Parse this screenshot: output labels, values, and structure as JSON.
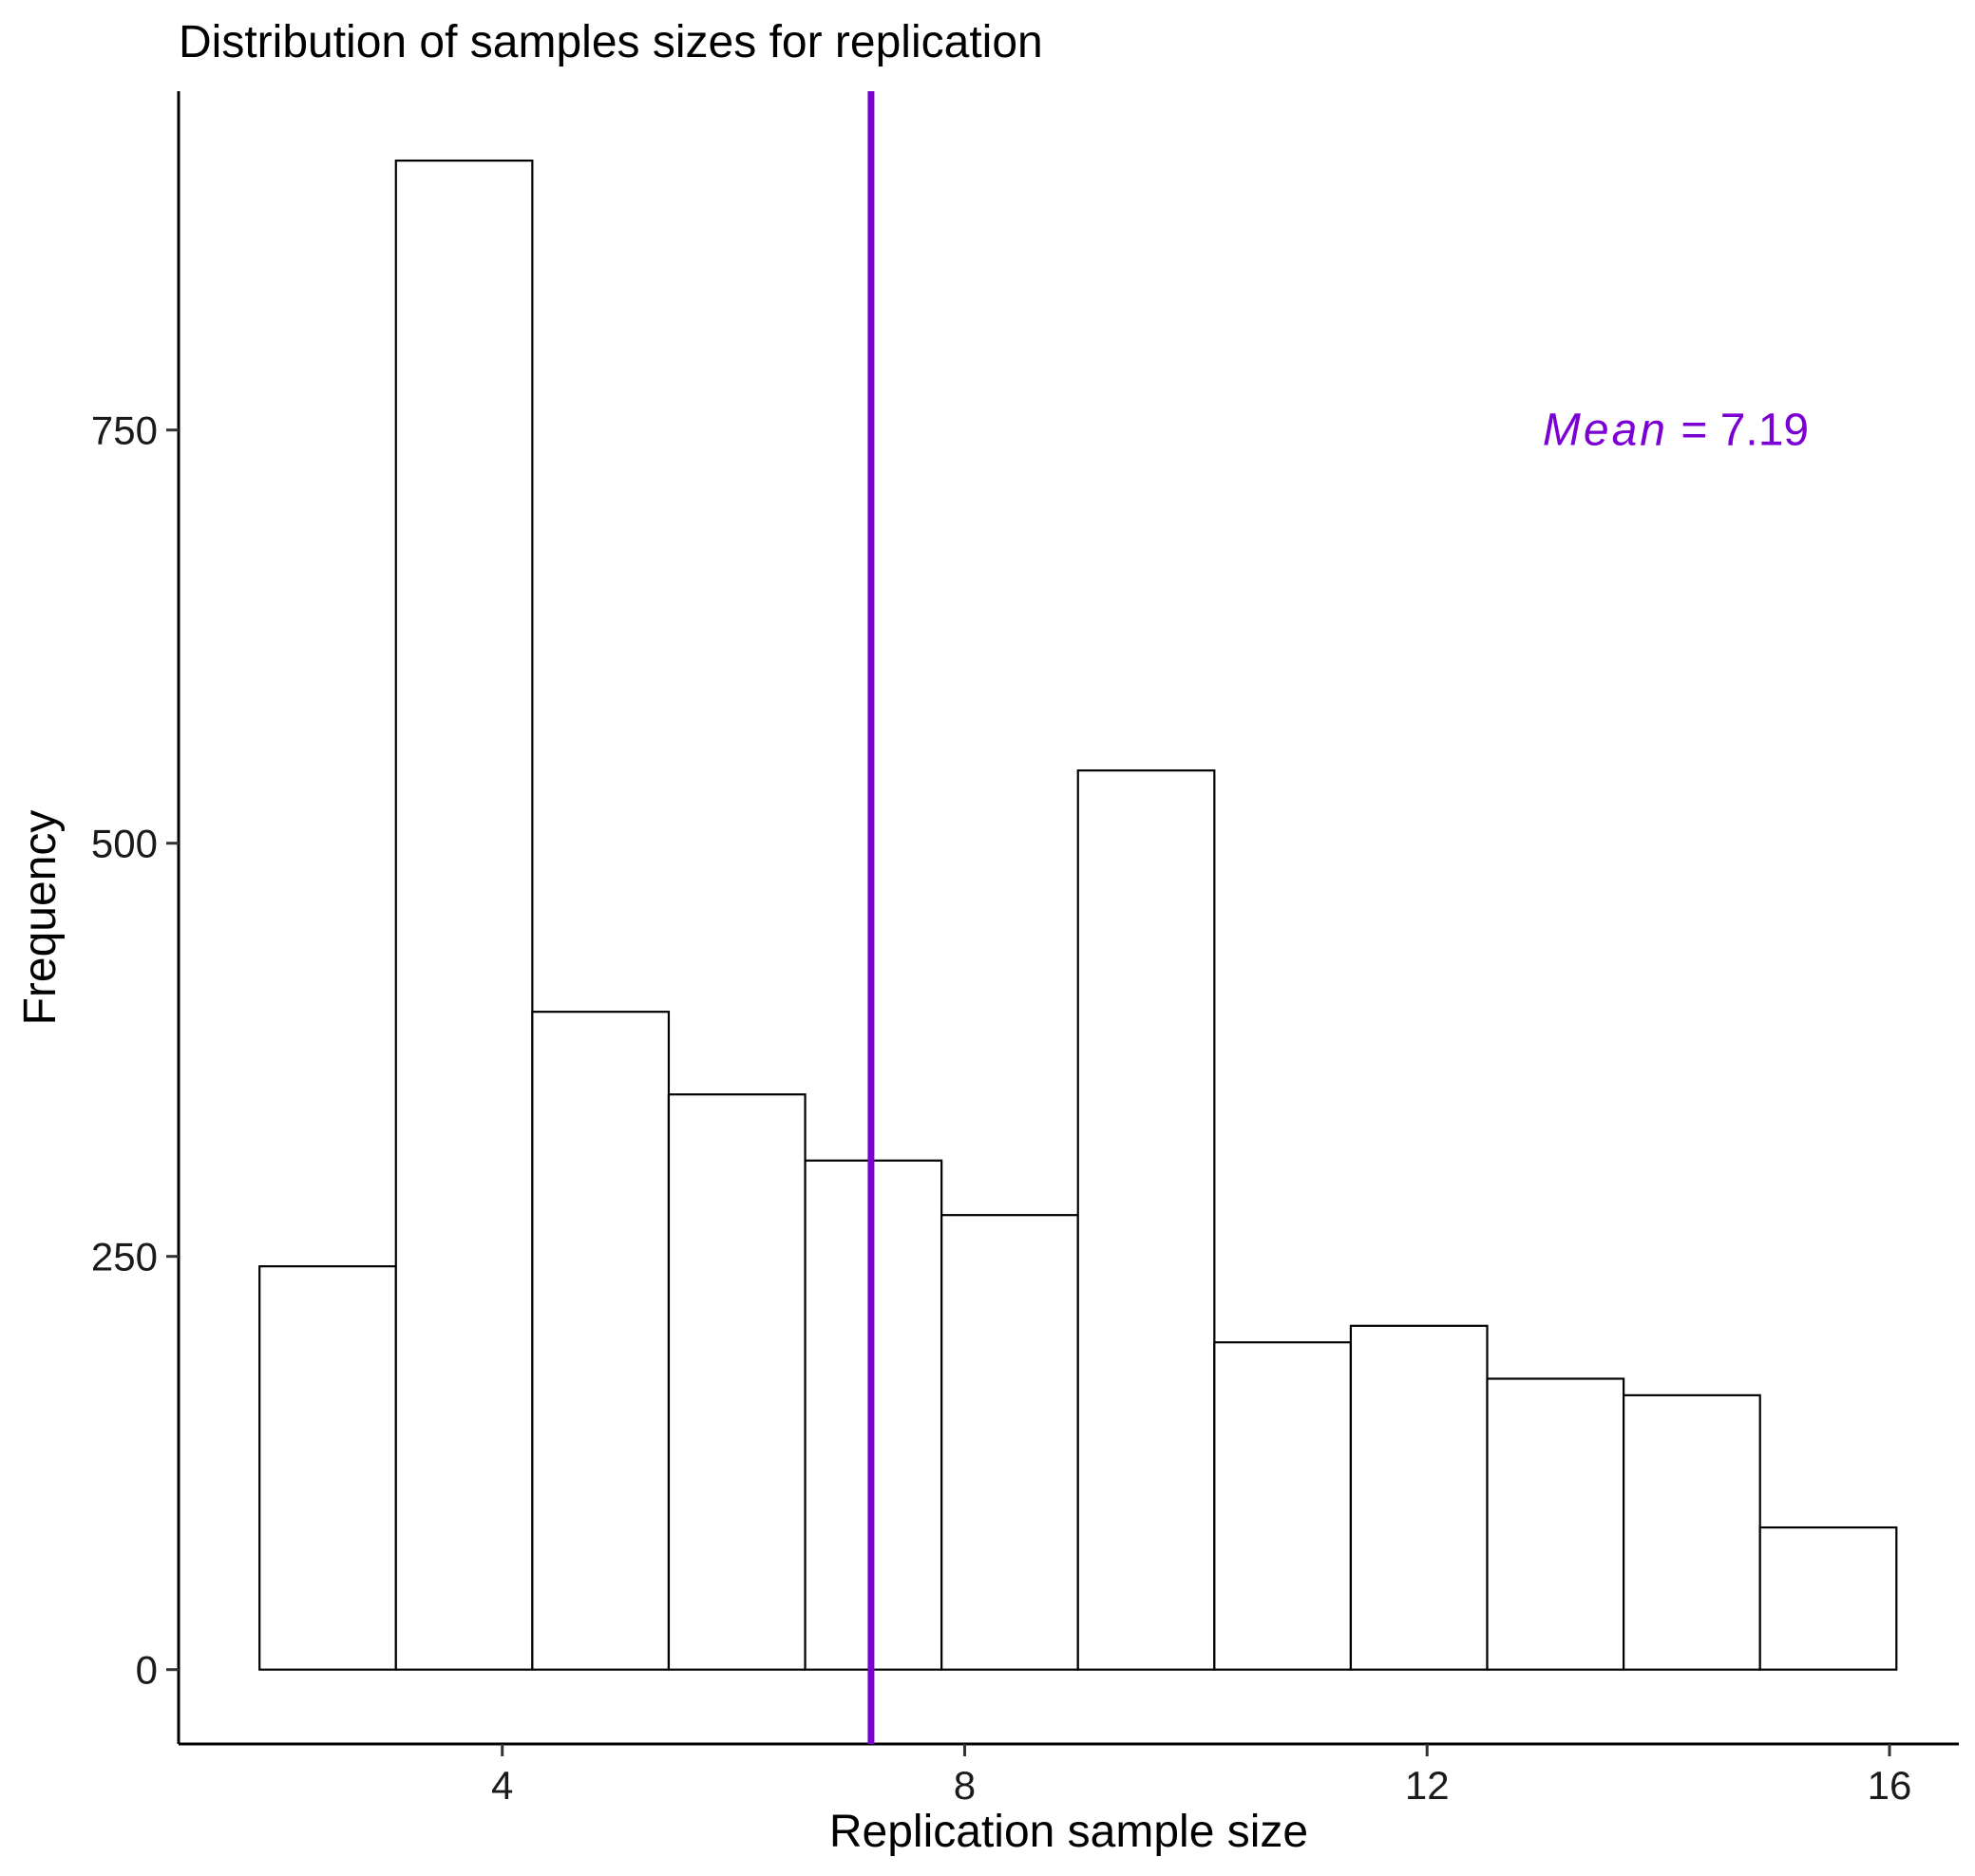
{
  "chart_data": {
    "type": "bar",
    "title": "Distribution of samples sizes for replication",
    "xlabel": "Replication sample size",
    "ylabel": "Frequency",
    "xlim": [
      1.2,
      16.6
    ],
    "ylim": [
      -45,
      955
    ],
    "x_ticks": [
      4,
      8,
      12,
      16
    ],
    "y_ticks": [
      0,
      250,
      500,
      750
    ],
    "x_tick_labels": [
      "4",
      "8",
      "12",
      "16"
    ],
    "y_tick_labels": [
      "0",
      "250",
      "500",
      "750"
    ],
    "bins": [
      {
        "x0": 1.9,
        "x1": 3.08,
        "count": 244
      },
      {
        "x0": 3.08,
        "x1": 4.26,
        "count": 913
      },
      {
        "x0": 4.26,
        "x1": 5.44,
        "count": 398
      },
      {
        "x0": 5.44,
        "x1": 6.62,
        "count": 348
      },
      {
        "x0": 6.62,
        "x1": 7.8,
        "count": 308
      },
      {
        "x0": 7.8,
        "x1": 8.98,
        "count": 275
      },
      {
        "x0": 8.98,
        "x1": 10.16,
        "count": 544
      },
      {
        "x0": 10.16,
        "x1": 11.34,
        "count": 198
      },
      {
        "x0": 11.34,
        "x1": 12.52,
        "count": 208
      },
      {
        "x0": 12.52,
        "x1": 13.7,
        "count": 176
      },
      {
        "x0": 13.7,
        "x1": 14.88,
        "count": 166
      },
      {
        "x0": 14.88,
        "x1": 16.06,
        "count": 86
      }
    ],
    "mean_line": {
      "value": 7.19,
      "color": "#7b00d4"
    },
    "annotation": {
      "label_italic": "Mean",
      "label_rest": " = 7.19",
      "x": 13.0,
      "y": 750,
      "color": "#7b00d4"
    },
    "bar_fill": "#ffffff",
    "bar_stroke": "#000000",
    "grid": false,
    "legend": "none"
  }
}
